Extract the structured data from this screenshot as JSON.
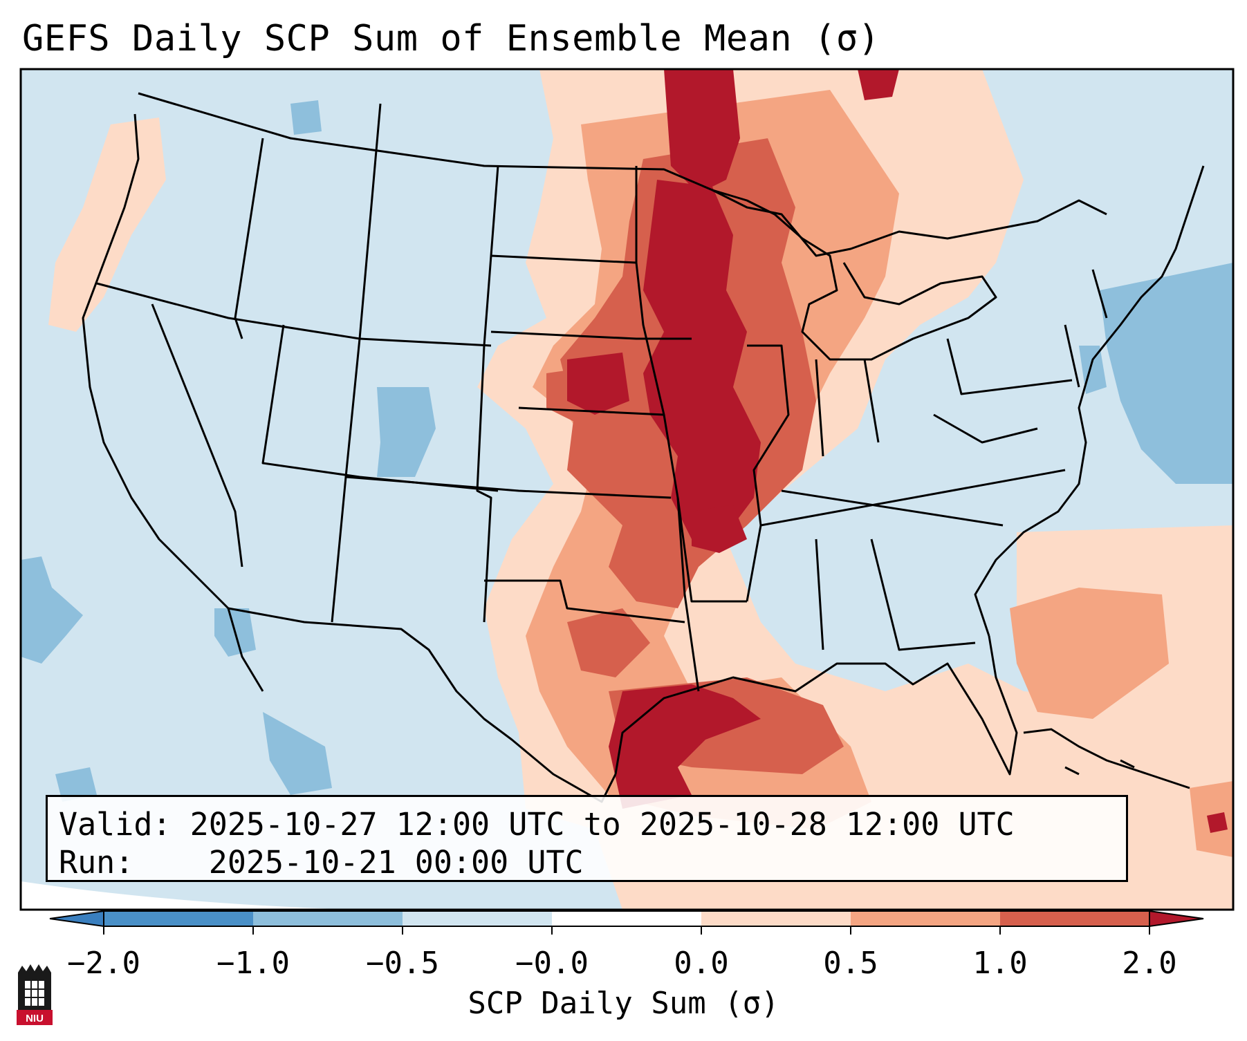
{
  "title": "GEFS Daily SCP Sum of Ensemble Mean (σ)",
  "info": {
    "valid_label": "Valid:",
    "valid_value": "2025-10-27 12:00 UTC to 2025-10-28 12:00 UTC",
    "run_label": "Run:",
    "run_value": "2025-10-21 00:00 UTC"
  },
  "colorbar": {
    "label": "SCP Daily Sum (σ)",
    "ticks": [
      "−2.0",
      "−1.0",
      "−0.5",
      "−0.0",
      "0.0",
      "0.5",
      "1.0",
      "2.0"
    ],
    "bins": [
      {
        "range": "< -2.0",
        "color": "#3a7fbf"
      },
      {
        "range": "-2.0 to -1.0",
        "color": "#4a90c7"
      },
      {
        "range": "-1.0 to -0.5",
        "color": "#8ebfdc"
      },
      {
        "range": "-0.5 to -0.0",
        "color": "#d1e5f0"
      },
      {
        "range": "-0.0 to 0.0",
        "color": "#ffffff"
      },
      {
        "range": "0.0 to 0.5",
        "color": "#fddbc7"
      },
      {
        "range": "0.5 to 1.0",
        "color": "#f4a582"
      },
      {
        "range": "1.0 to 2.0",
        "color": "#d6604d"
      },
      {
        "range": "> 2.0",
        "color": "#b2182b"
      }
    ]
  },
  "logo": {
    "text": "NIU"
  }
}
